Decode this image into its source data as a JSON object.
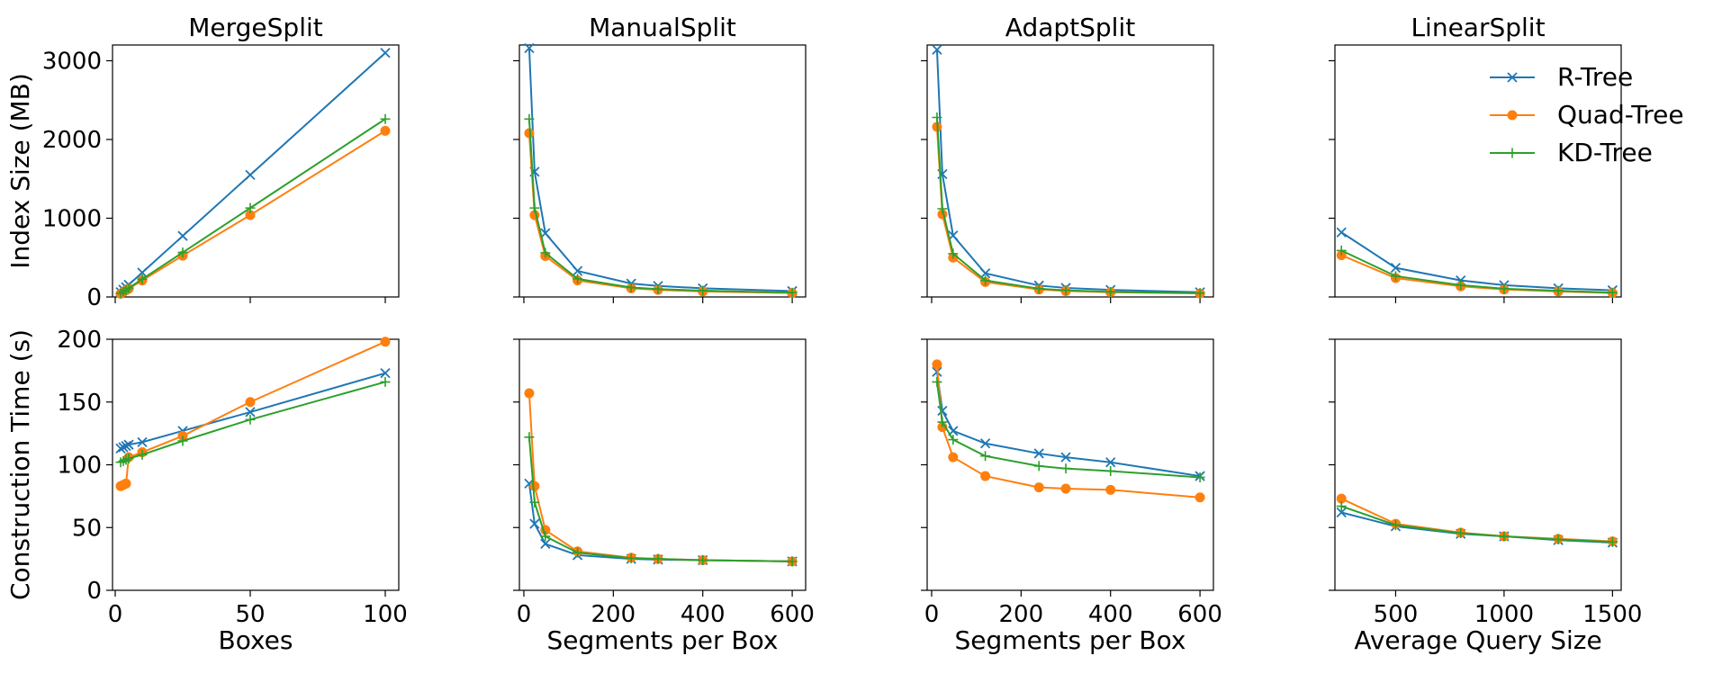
{
  "chart_data": {
    "type": "line",
    "legend": {
      "location": "top-right of the LinearSplit index-size panel",
      "entries": [
        {
          "label": "R-Tree",
          "color": "#1f77b4",
          "marker": "x"
        },
        {
          "label": "Quad-Tree",
          "color": "#ff7f0e",
          "marker": "o"
        },
        {
          "label": "KD-Tree",
          "color": "#2ca02c",
          "marker": "+"
        }
      ]
    },
    "row_ylabels": [
      "Index Size (MB)",
      "Construction Time (s)"
    ],
    "row_yticks": [
      [
        0,
        1000,
        2000,
        3000
      ],
      [
        0,
        50,
        100,
        150,
        200
      ]
    ],
    "row_ylims": [
      [
        0,
        3200
      ],
      [
        0,
        200
      ]
    ],
    "columns": [
      {
        "title": "MergeSplit",
        "xlabel": "Boxes",
        "xlim": [
          -1,
          105
        ],
        "xticks": [
          0,
          50,
          100
        ],
        "x": [
          2,
          3,
          4,
          5,
          10,
          25,
          50,
          100
        ],
        "index_size": [
          {
            "name": "R-Tree",
            "values": [
              62,
              93,
              124,
              155,
              310,
              775,
              1550,
              3100
            ]
          },
          {
            "name": "Quad-Tree",
            "values": [
              42,
              63,
              84,
              105,
              210,
              525,
              1040,
              2110
            ]
          },
          {
            "name": "KD-Tree",
            "values": [
              45,
              68,
              90,
              113,
              226,
              565,
              1130,
              2260
            ]
          }
        ],
        "construction_time": [
          {
            "name": "R-Tree",
            "values": [
              113,
              114,
              115,
              116,
              118,
              127,
              142,
              173
            ]
          },
          {
            "name": "Quad-Tree",
            "values": [
              83,
              84,
              85,
              106,
              110,
              123,
              150,
              198
            ]
          },
          {
            "name": "KD-Tree",
            "values": [
              102,
              103,
              104,
              105,
              108,
              119,
              136,
              166
            ]
          }
        ]
      },
      {
        "title": "ManualSplit",
        "xlabel": "Segments per Box",
        "xlim": [
          -10,
          630
        ],
        "xticks": [
          0,
          200,
          400,
          600
        ],
        "x": [
          12,
          24,
          48,
          120,
          240,
          300,
          400,
          600
        ],
        "index_size": [
          {
            "name": "R-Tree",
            "values": [
              3160,
              1590,
              810,
              330,
              170,
              140,
              110,
              75
            ]
          },
          {
            "name": "Quad-Tree",
            "values": [
              2080,
              1040,
              520,
              210,
              110,
              90,
              70,
              50
            ]
          },
          {
            "name": "KD-Tree",
            "values": [
              2260,
              1130,
              560,
              230,
              120,
              100,
              80,
              55
            ]
          }
        ],
        "construction_time": [
          {
            "name": "R-Tree",
            "values": [
              85,
              53,
              37,
              28,
              25,
              24.5,
              24,
              23
            ]
          },
          {
            "name": "Quad-Tree",
            "values": [
              157,
              83,
              48,
              31,
              26,
              25,
              24,
              23
            ]
          },
          {
            "name": "KD-Tree",
            "values": [
              122,
              70,
              43,
              30,
              25.5,
              25,
              24,
              23
            ]
          }
        ]
      },
      {
        "title": "AdaptSplit",
        "xlabel": "Segments per Box",
        "xlim": [
          -10,
          630
        ],
        "xticks": [
          0,
          200,
          400,
          600
        ],
        "x": [
          12,
          24,
          48,
          120,
          240,
          300,
          400,
          600
        ],
        "index_size": [
          {
            "name": "R-Tree",
            "values": [
              3140,
              1560,
              780,
              300,
              145,
              115,
              90,
              60
            ]
          },
          {
            "name": "Quad-Tree",
            "values": [
              2160,
              1050,
              500,
              190,
              95,
              75,
              60,
              45
            ]
          },
          {
            "name": "KD-Tree",
            "values": [
              2280,
              1120,
              550,
              210,
              105,
              85,
              65,
              48
            ]
          }
        ],
        "construction_time": [
          {
            "name": "R-Tree",
            "values": [
              174,
              143,
              127,
              117,
              109,
              106,
              102,
              91
            ]
          },
          {
            "name": "Quad-Tree",
            "values": [
              180,
              130,
              106,
              91,
              82,
              81,
              80,
              74
            ]
          },
          {
            "name": "KD-Tree",
            "values": [
              166,
              134,
              120,
              107,
              99,
              97,
              95,
              90
            ]
          }
        ]
      },
      {
        "title": "LinearSplit",
        "xlabel": "Average Query Size",
        "xlim": [
          220,
          1540
        ],
        "xticks": [
          500,
          1000,
          1500
        ],
        "x": [
          250,
          500,
          800,
          1000,
          1250,
          1500
        ],
        "index_size": [
          {
            "name": "R-Tree",
            "values": [
              820,
              370,
              210,
              150,
              110,
              85
            ]
          },
          {
            "name": "Quad-Tree",
            "values": [
              530,
              240,
              135,
              95,
              70,
              50
            ]
          },
          {
            "name": "KD-Tree",
            "values": [
              590,
              265,
              150,
              105,
              78,
              55
            ]
          }
        ],
        "construction_time": [
          {
            "name": "R-Tree",
            "values": [
              62,
              51,
              45,
              43,
              40,
              38
            ]
          },
          {
            "name": "Quad-Tree",
            "values": [
              73,
              53,
              46,
              43,
              41,
              39
            ]
          },
          {
            "name": "KD-Tree",
            "values": [
              67,
              52,
              45.5,
              43,
              40.5,
              38.5
            ]
          }
        ]
      }
    ]
  }
}
